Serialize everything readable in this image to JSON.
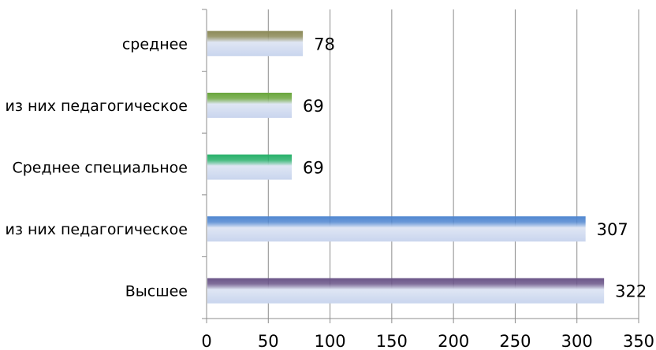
{
  "chart_data": {
    "type": "bar",
    "orientation": "horizontal",
    "title": "",
    "xlabel": "",
    "ylabel": "",
    "categories": [
      "среднее",
      "из них педагогическое",
      "Среднее специальное",
      "из них педагогическое",
      "Высшее"
    ],
    "values": [
      78,
      69,
      69,
      307,
      322
    ],
    "bar_colors": [
      "#8c8a58",
      "#6aa63c",
      "#27b06a",
      "#4f86d0",
      "#6a5488"
    ],
    "xlim": [
      0,
      350
    ],
    "xticks": [
      "0",
      "50",
      "100",
      "150",
      "200",
      "250",
      "300",
      "350"
    ],
    "grid": "vertical",
    "legend": "none",
    "data_labels": [
      "78",
      "69",
      "69",
      "307",
      "322"
    ]
  }
}
